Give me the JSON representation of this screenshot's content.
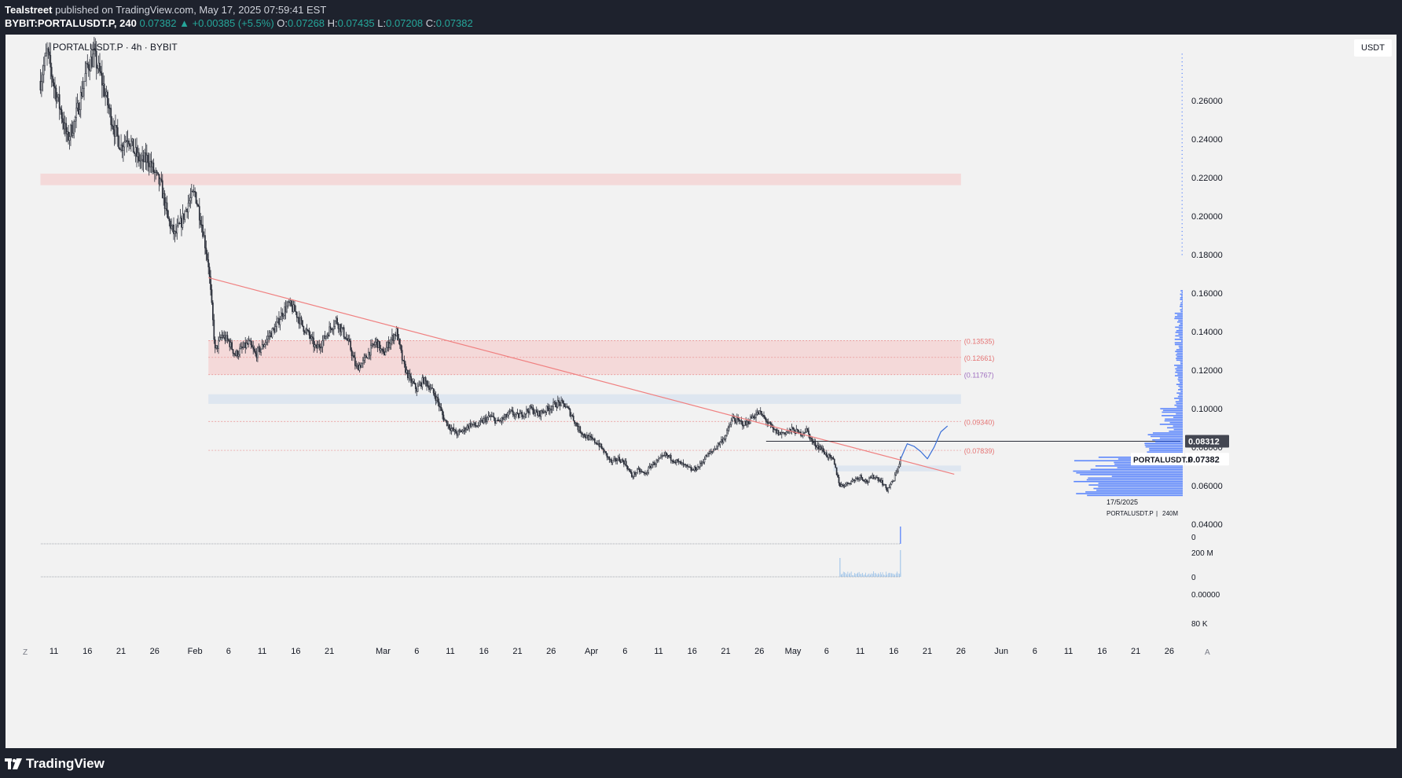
{
  "header": {
    "author": "Tealstreet",
    "published_text": "published on TradingView.com, May 17, 2025 07:59:41 EST",
    "symbol": "BYBIT:PORTALUSDT.P, 240",
    "last": "0.07382",
    "change_arrow": "▲",
    "change": "+0.00385 (+5.5%)",
    "o_label": "O:",
    "o": "0.07268",
    "h_label": "H:",
    "h": "0.07435",
    "l_label": "L:",
    "l": "0.07208",
    "c_label": "C:",
    "c": "0.07382"
  },
  "chart_title": "PORTALUSDT.P · 4h · BYBIT",
  "currency_button": "USDT",
  "footer": {
    "brand": "TradingView"
  },
  "colors": {
    "background": "#f2f2f2",
    "frame": "#1e222d",
    "candle": "#2a2e39",
    "trendline": "#f08080",
    "zone_red": "#f5d5d5",
    "zone_blue": "#dbe4f0",
    "level_label": "#e57373",
    "projection": "#3a6fd8",
    "volume_profile": "#2962ff",
    "price_badge": "#434651"
  },
  "chart_data": {
    "type": "candlestick",
    "title": "PORTALUSDT.P · 4h · BYBIT",
    "ylim": [
      0.0,
      0.286
    ],
    "y_scale": "linear",
    "y_ticks": [
      "0.26000",
      "0.24000",
      "0.22000",
      "0.20000",
      "0.18000",
      "0.16000",
      "0.14000",
      "0.12000",
      "0.10000",
      "0.08000",
      "0.06000",
      "0.04000"
    ],
    "x_ticks": [
      "11",
      "16",
      "21",
      "26",
      "Feb",
      "6",
      "11",
      "16",
      "21",
      "Mar",
      "6",
      "11",
      "16",
      "21",
      "26",
      "Apr",
      "6",
      "11",
      "16",
      "21",
      "26",
      "May",
      "6",
      "11",
      "16",
      "21",
      "26",
      "Jun",
      "6",
      "11",
      "16",
      "21",
      "26"
    ],
    "price_path": [
      [
        "2025-01-09",
        0.27
      ],
      [
        "2025-01-10",
        0.285
      ],
      [
        "2025-01-11",
        0.268
      ],
      [
        "2025-01-12",
        0.255
      ],
      [
        "2025-01-13",
        0.24
      ],
      [
        "2025-01-14",
        0.248
      ],
      [
        "2025-01-15",
        0.262
      ],
      [
        "2025-01-16",
        0.278
      ],
      [
        "2025-01-17",
        0.283
      ],
      [
        "2025-01-18",
        0.272
      ],
      [
        "2025-01-19",
        0.258
      ],
      [
        "2025-01-20",
        0.245
      ],
      [
        "2025-01-21",
        0.236
      ],
      [
        "2025-01-22",
        0.242
      ],
      [
        "2025-01-23",
        0.233
      ],
      [
        "2025-01-24",
        0.228
      ],
      [
        "2025-01-25",
        0.23
      ],
      [
        "2025-01-26",
        0.222
      ],
      [
        "2025-01-27",
        0.215
      ],
      [
        "2025-01-28",
        0.198
      ],
      [
        "2025-01-29",
        0.19
      ],
      [
        "2025-01-30",
        0.197
      ],
      [
        "2025-01-31",
        0.207
      ],
      [
        "2025-02-01",
        0.212
      ],
      [
        "2025-02-02",
        0.196
      ],
      [
        "2025-02-03",
        0.175
      ],
      [
        "2025-02-04",
        0.13
      ],
      [
        "2025-02-05",
        0.138
      ],
      [
        "2025-02-06",
        0.135
      ],
      [
        "2025-02-07",
        0.128
      ],
      [
        "2025-02-08",
        0.131
      ],
      [
        "2025-02-09",
        0.134
      ],
      [
        "2025-02-10",
        0.128
      ],
      [
        "2025-02-11",
        0.132
      ],
      [
        "2025-02-12",
        0.138
      ],
      [
        "2025-02-13",
        0.142
      ],
      [
        "2025-02-14",
        0.15
      ],
      [
        "2025-02-15",
        0.154
      ],
      [
        "2025-02-16",
        0.15
      ],
      [
        "2025-02-17",
        0.143
      ],
      [
        "2025-02-18",
        0.138
      ],
      [
        "2025-02-19",
        0.131
      ],
      [
        "2025-02-20",
        0.135
      ],
      [
        "2025-02-21",
        0.141
      ],
      [
        "2025-02-22",
        0.146
      ],
      [
        "2025-02-23",
        0.14
      ],
      [
        "2025-02-24",
        0.133
      ],
      [
        "2025-02-25",
        0.121
      ],
      [
        "2025-02-26",
        0.124
      ],
      [
        "2025-02-27",
        0.13
      ],
      [
        "2025-02-28",
        0.135
      ],
      [
        "2025-03-01",
        0.128
      ],
      [
        "2025-03-02",
        0.135
      ],
      [
        "2025-03-03",
        0.14
      ],
      [
        "2025-03-04",
        0.123
      ],
      [
        "2025-03-05",
        0.115
      ],
      [
        "2025-03-06",
        0.11
      ],
      [
        "2025-03-07",
        0.115
      ],
      [
        "2025-03-08",
        0.111
      ],
      [
        "2025-03-09",
        0.105
      ],
      [
        "2025-03-10",
        0.095
      ],
      [
        "2025-03-11",
        0.09
      ],
      [
        "2025-03-12",
        0.087
      ],
      [
        "2025-03-13",
        0.089
      ],
      [
        "2025-03-14",
        0.092
      ],
      [
        "2025-03-15",
        0.091
      ],
      [
        "2025-03-16",
        0.094
      ],
      [
        "2025-03-17",
        0.096
      ],
      [
        "2025-03-18",
        0.093
      ],
      [
        "2025-03-19",
        0.095
      ],
      [
        "2025-03-20",
        0.098
      ],
      [
        "2025-03-21",
        0.096
      ],
      [
        "2025-03-22",
        0.098
      ],
      [
        "2025-03-23",
        0.1
      ],
      [
        "2025-03-24",
        0.097
      ],
      [
        "2025-03-25",
        0.099
      ],
      [
        "2025-03-26",
        0.101
      ],
      [
        "2025-03-27",
        0.103
      ],
      [
        "2025-03-28",
        0.102
      ],
      [
        "2025-03-29",
        0.097
      ],
      [
        "2025-03-30",
        0.09
      ],
      [
        "2025-03-31",
        0.086
      ],
      [
        "2025-04-01",
        0.084
      ],
      [
        "2025-04-02",
        0.082
      ],
      [
        "2025-04-03",
        0.077
      ],
      [
        "2025-04-04",
        0.072
      ],
      [
        "2025-04-05",
        0.074
      ],
      [
        "2025-04-06",
        0.072
      ],
      [
        "2025-04-07",
        0.065
      ],
      [
        "2025-04-08",
        0.068
      ],
      [
        "2025-04-09",
        0.066
      ],
      [
        "2025-04-10",
        0.071
      ],
      [
        "2025-04-11",
        0.073
      ],
      [
        "2025-04-12",
        0.076
      ],
      [
        "2025-04-13",
        0.074
      ],
      [
        "2025-04-14",
        0.072
      ],
      [
        "2025-04-15",
        0.07
      ],
      [
        "2025-04-16",
        0.068
      ],
      [
        "2025-04-17",
        0.07
      ],
      [
        "2025-04-18",
        0.075
      ],
      [
        "2025-04-19",
        0.078
      ],
      [
        "2025-04-20",
        0.082
      ],
      [
        "2025-04-21",
        0.086
      ],
      [
        "2025-04-22",
        0.095
      ],
      [
        "2025-04-23",
        0.093
      ],
      [
        "2025-04-24",
        0.092
      ],
      [
        "2025-04-25",
        0.096
      ],
      [
        "2025-04-26",
        0.098
      ],
      [
        "2025-04-27",
        0.094
      ],
      [
        "2025-04-28",
        0.089
      ],
      [
        "2025-04-29",
        0.087
      ],
      [
        "2025-04-30",
        0.088
      ],
      [
        "2025-05-01",
        0.089
      ],
      [
        "2025-05-02",
        0.087
      ],
      [
        "2025-05-03",
        0.089
      ],
      [
        "2025-05-04",
        0.082
      ],
      [
        "2025-05-05",
        0.08
      ],
      [
        "2025-05-06",
        0.076
      ],
      [
        "2025-05-07",
        0.073
      ],
      [
        "2025-05-08",
        0.06
      ],
      [
        "2025-05-09",
        0.061
      ],
      [
        "2025-05-10",
        0.063
      ],
      [
        "2025-05-11",
        0.065
      ],
      [
        "2025-05-12",
        0.062
      ],
      [
        "2025-05-13",
        0.065
      ],
      [
        "2025-05-14",
        0.063
      ],
      [
        "2025-05-15",
        0.058
      ],
      [
        "2025-05-16",
        0.063
      ],
      [
        "2025-05-17",
        0.07382
      ]
    ],
    "trendline": {
      "from": [
        "2025-02-03",
        0.168
      ],
      "to": [
        "2025-05-25",
        0.066
      ]
    },
    "levels": [
      {
        "label": "(0.13535)",
        "value": 0.13535
      },
      {
        "label": "(0.12661)",
        "value": 0.12661
      },
      {
        "label": "(0.11767)",
        "value": 0.11767
      },
      {
        "label": "(0.09340)",
        "value": 0.0934
      },
      {
        "label": "(0.07839)",
        "value": 0.07839
      }
    ],
    "zones": [
      {
        "kind": "resistance",
        "from": [
          "2025-01-09",
          0.222
        ],
        "to": [
          "2025-05-26",
          0.216
        ]
      },
      {
        "kind": "resistance",
        "from": [
          "2025-02-03",
          0.1354
        ],
        "to": [
          "2025-05-26",
          0.1177
        ]
      },
      {
        "kind": "support",
        "from": [
          "2025-02-03",
          0.1075
        ],
        "to": [
          "2025-05-26",
          0.1025
        ]
      },
      {
        "kind": "support",
        "from": [
          "2025-05-07",
          0.0705
        ],
        "to": [
          "2025-05-26",
          0.0675
        ]
      }
    ],
    "horizontal_line": {
      "value": 0.08312,
      "from": "2025-04-27"
    },
    "projection_path": [
      [
        "2025-05-17",
        0.0738
      ],
      [
        "2025-05-18",
        0.0818
      ],
      [
        "2025-05-19",
        0.0805
      ],
      [
        "2025-05-20",
        0.0778
      ],
      [
        "2025-05-21",
        0.074
      ],
      [
        "2025-05-22",
        0.08
      ],
      [
        "2025-05-23",
        0.088
      ],
      [
        "2025-05-24",
        0.091
      ]
    ],
    "price_labels": [
      {
        "text": "0.08312",
        "value": 0.08312
      },
      {
        "text": "0.07382",
        "value": 0.07382,
        "name": "PORTALUSDT.P"
      }
    ],
    "info_box": {
      "date": "17/5/2025",
      "symbol": "PORTALUSDT.P",
      "interval": "240M"
    },
    "lower_scale": [
      "0",
      "200 M",
      "0",
      "0.00000",
      "80 K"
    ],
    "axis_corner_left": "Z",
    "axis_corner_right": "A"
  }
}
